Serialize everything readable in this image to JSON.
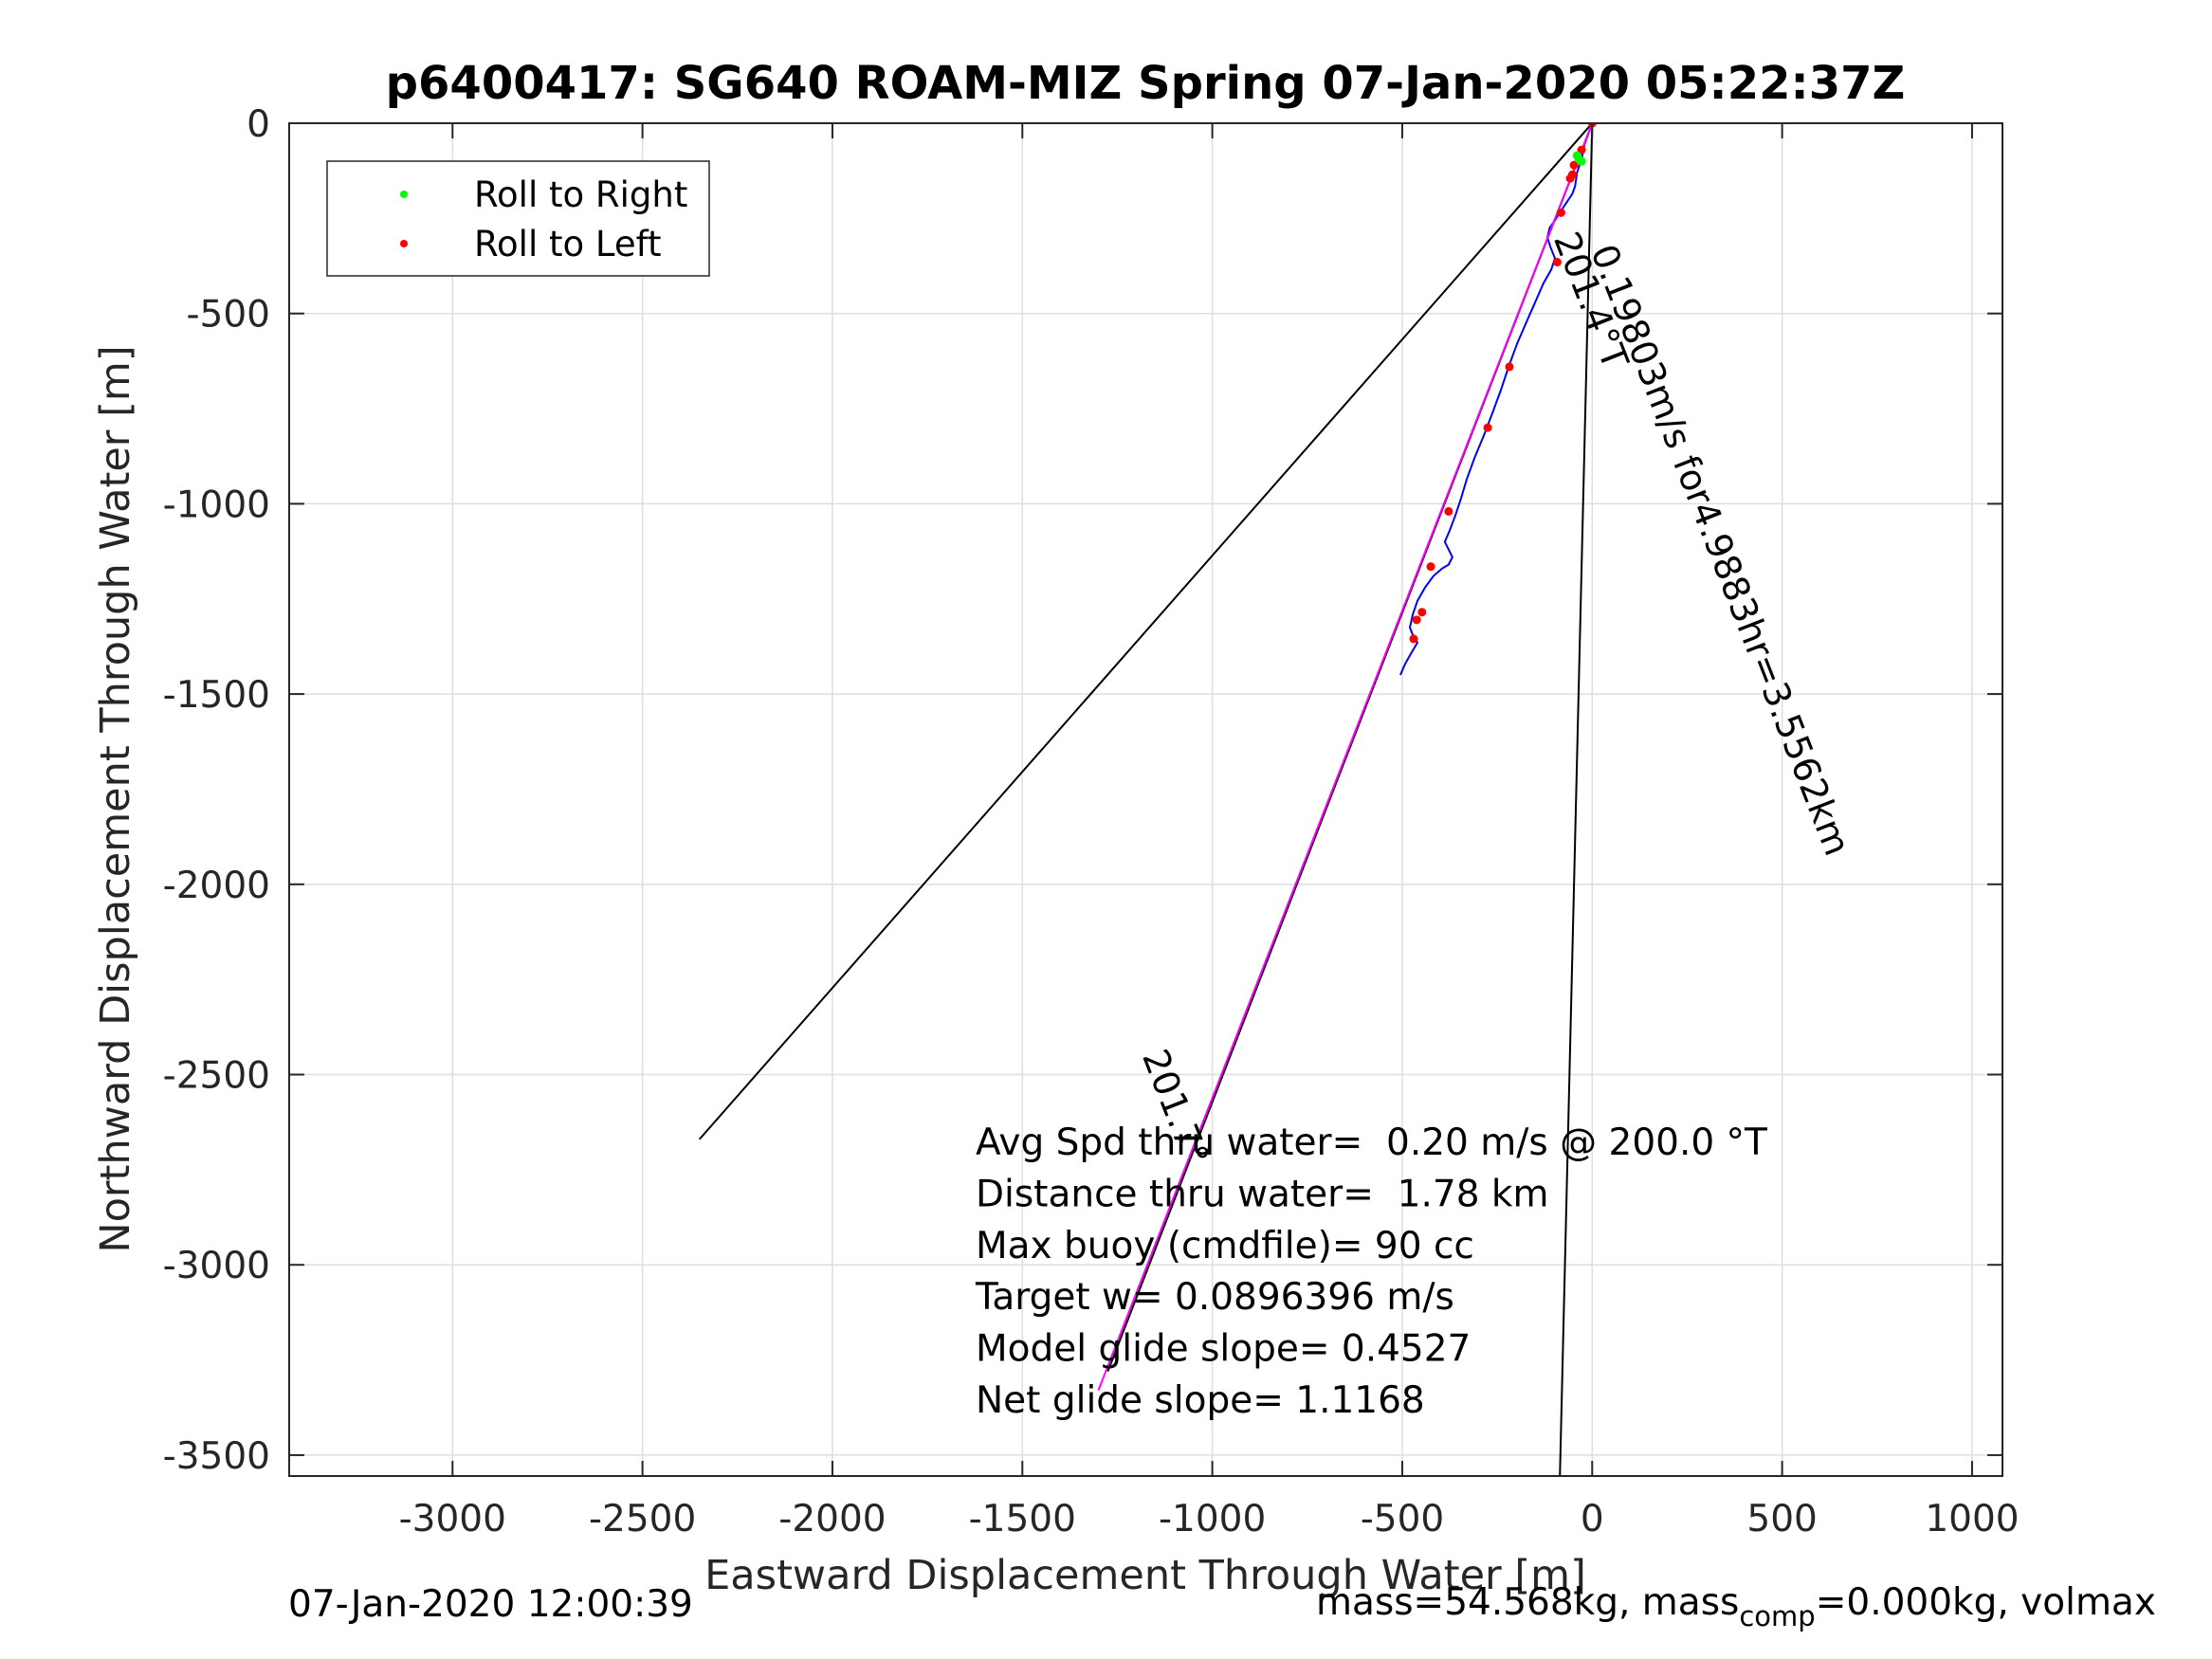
{
  "chart_data": {
    "type": "line",
    "title": "p6400417: SG640 ROAM-MIZ Spring 07-Jan-2020 05:22:37Z",
    "xlabel": "Eastward Displacement Through Water [m]",
    "ylabel": "Northward Displacement Through Water [m]",
    "xlim": [
      -3430,
      1080
    ],
    "ylim": [
      -3555,
      0
    ],
    "xticks": [
      -3000,
      -2500,
      -2000,
      -1500,
      -1000,
      -500,
      0,
      500,
      1000
    ],
    "yticks": [
      0,
      -500,
      -1000,
      -1500,
      -2000,
      -2500,
      -3000,
      -3500
    ],
    "grid": true,
    "legend": {
      "position": "top-left",
      "entries": [
        {
          "label": "Roll to Right",
          "color": "#00ff00"
        },
        {
          "label": "Roll to Left",
          "color": "#ff0000"
        }
      ]
    },
    "series": [
      {
        "name": "",
        "color": "#0000ff",
        "x": [
          0,
          -20,
          -28,
          -40,
          -45,
          -52,
          -62,
          -72,
          -85,
          -98,
          -112,
          -118,
          -110,
          -98,
          -108,
          -128,
          -150,
          -172,
          -198,
          -220,
          -240,
          -262,
          -285,
          -310,
          -330,
          -345,
          -360,
          -375,
          -388,
          -378,
          -368,
          -378,
          -395,
          -418,
          -440,
          -460,
          -472,
          -480,
          -470,
          -460,
          -475,
          -492,
          -505
        ],
        "y": [
          0,
          -55,
          -95,
          -130,
          -165,
          -185,
          -200,
          -215,
          -235,
          -255,
          -275,
          -300,
          -325,
          -355,
          -385,
          -420,
          -470,
          -520,
          -580,
          -640,
          -700,
          -760,
          -820,
          -880,
          -935,
          -985,
          -1030,
          -1070,
          -1100,
          -1120,
          -1140,
          -1160,
          -1170,
          -1190,
          -1220,
          -1255,
          -1290,
          -1325,
          -1350,
          -1365,
          -1390,
          -1420,
          -1450
        ]
      },
      {
        "name": "",
        "color": "#ff00ff",
        "x": [
          0,
          -1300
        ],
        "y": [
          0,
          -3330
        ]
      }
    ],
    "roll_right_points": {
      "x": [
        -40,
        -35,
        -28
      ],
      "y": [
        -85,
        -95,
        -100
      ]
    },
    "roll_left_points": {
      "x": [
        0,
        -28,
        -48,
        -52,
        -58,
        -82,
        -92,
        -218,
        -275,
        -378,
        -425,
        -448,
        -462,
        -470
      ],
      "y": [
        0,
        -70,
        -110,
        -135,
        -145,
        -235,
        -365,
        -640,
        -800,
        -1020,
        -1165,
        -1285,
        -1305,
        -1355
      ]
    },
    "reference_lines": [
      {
        "color": "#000000",
        "x": [
          0,
          -2350
        ],
        "y": [
          0,
          -2670
        ]
      },
      {
        "color": "#000000",
        "x": [
          0,
          -85
        ],
        "y": [
          0,
          -3555
        ]
      },
      {
        "color": "#000000",
        "x": [
          0,
          -1275
        ],
        "y": [
          0,
          -3280
        ]
      }
    ],
    "annotations": [
      {
        "text": "0.19803m/s for4.9883hr=3.5562km",
        "x": -4,
        "y": -335,
        "rotation": 68.7
      },
      {
        "text": "201.4°T",
        "x": -102,
        "y": -302,
        "rotation": 68.7
      },
      {
        "text": "201.7°",
        "x": -1185,
        "y": -2450,
        "rotation": 68.7
      }
    ],
    "stats_text": [
      "Avg Spd thru water=  0.20 m/s @ 200.0 °T",
      "Distance thru water=  1.78 km",
      "Max buoy (cmdfile)= 90 cc",
      "Target w= 0.0896396 m/s",
      "Model glide slope= 0.4527",
      "Net glide slope= 1.1168"
    ]
  },
  "footer": {
    "left": "07-Jan-2020 12:00:39",
    "right_prefix": "mass=54.568kg, mass",
    "right_sub": "comp",
    "right_suffix": "=0.000kg, volmax"
  }
}
